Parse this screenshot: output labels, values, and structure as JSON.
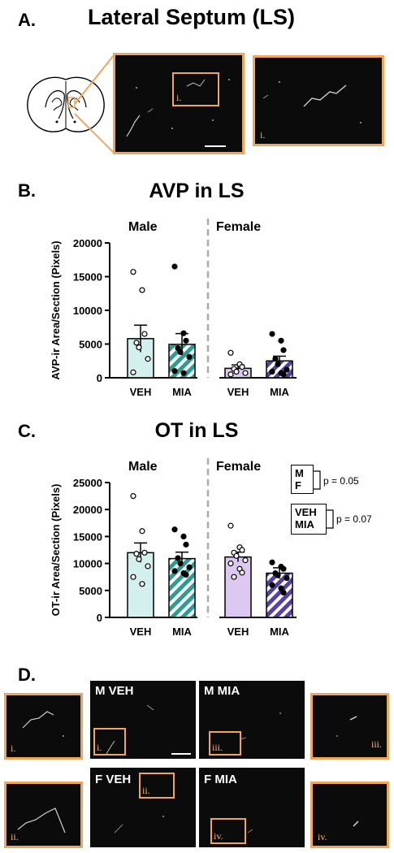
{
  "panel_a": {
    "letter": "A.",
    "title": "Lateral Septum (LS)",
    "inset_label_main": "i.",
    "inset_label_zoom": "i."
  },
  "panel_b": {
    "letter": "B."
  },
  "panel_c": {
    "letter": "C.",
    "legend": {
      "box1_line1": "M",
      "box1_line2": "F",
      "box1_p": "p = 0.05",
      "box2_line1": "VEH",
      "box2_line2": "MIA",
      "box2_p": "p = 0.07"
    }
  },
  "panel_d": {
    "letter": "D.",
    "images": [
      {
        "title": "M VEH",
        "inset": "i."
      },
      {
        "title": "M MIA",
        "inset": "iii."
      },
      {
        "title": "F VEH",
        "inset": "ii."
      },
      {
        "title": "F MIA",
        "inset": "iv."
      }
    ],
    "zooms": [
      "i.",
      "iii.",
      "ii.",
      "iv."
    ]
  },
  "colors": {
    "inset_border": "#f0a65a",
    "male_veh_fill": "#d4f0ee",
    "male_mia_fill": "#2f9c93",
    "female_veh_fill": "#ddc8f2",
    "female_mia_fill": "#5a3fa3"
  },
  "chart_data": [
    {
      "type": "bar",
      "title": "AVP in LS",
      "ylabel": "AVP-ir Area/Section (Pixels)",
      "ylim": [
        0,
        20000
      ],
      "yticks": [
        "0",
        "5000",
        "10000",
        "15000",
        "20000"
      ],
      "groups": [
        "Male",
        "Female"
      ],
      "categories": [
        "VEH",
        "MIA",
        "VEH",
        "MIA"
      ],
      "values": [
        5800,
        4950,
        1400,
        2500
      ],
      "errors": [
        2000,
        1600,
        500,
        700
      ],
      "points": [
        [
          15700,
          13000,
          6500,
          5200,
          4500,
          2800,
          800
        ],
        [
          16500,
          6600,
          5500,
          4400,
          3800,
          3100,
          1000,
          700
        ],
        [
          3700,
          2000,
          1600,
          1300,
          900,
          700,
          500
        ],
        [
          6500,
          5500,
          4100,
          2800,
          2000,
          1200,
          900,
          700,
          500
        ]
      ],
      "grid": false
    },
    {
      "type": "bar",
      "title": "OT in LS",
      "ylabel": "OT-ir Area/Section (Pixels)",
      "ylim": [
        0,
        25000
      ],
      "yticks": [
        "0",
        "5000",
        "10000",
        "15000",
        "20000",
        "25000"
      ],
      "groups": [
        "Male",
        "Female"
      ],
      "categories": [
        "VEH",
        "MIA",
        "VEH",
        "MIA"
      ],
      "values": [
        12000,
        10900,
        11200,
        8200
      ],
      "errors": [
        1800,
        1200,
        900,
        1000
      ],
      "points": [
        [
          22500,
          16000,
          12000,
          11800,
          10800,
          9500,
          7500,
          6200
        ],
        [
          16300,
          15000,
          13500,
          11000,
          10000,
          9300,
          8600,
          8200,
          7900
        ],
        [
          17000,
          13000,
          12500,
          12000,
          11400,
          10600,
          10000,
          9000,
          8300,
          7500
        ],
        [
          10200,
          9400,
          9000,
          8200,
          7800,
          7300,
          6000,
          5400,
          4600
        ]
      ],
      "grid": false
    }
  ]
}
